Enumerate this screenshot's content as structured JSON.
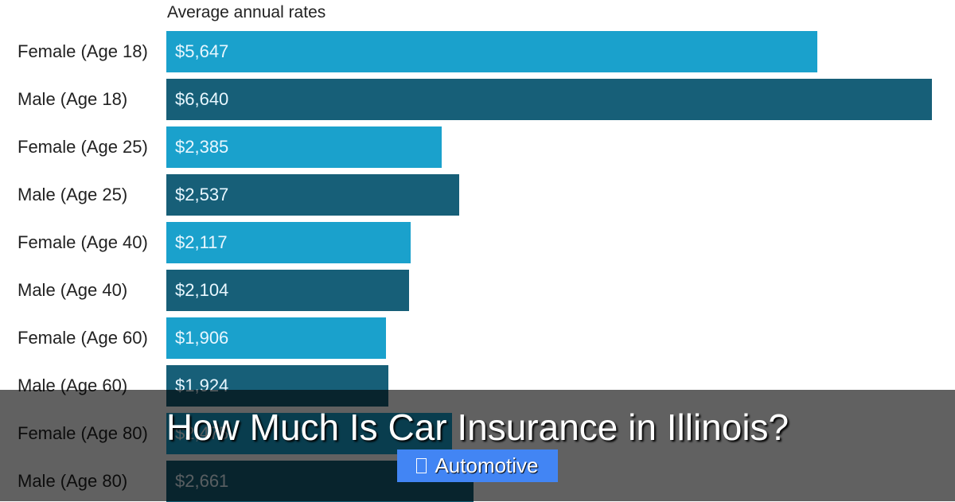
{
  "chart_data": {
    "type": "bar",
    "orientation": "horizontal",
    "title": "Average annual rates",
    "xlabel": "",
    "ylabel": "",
    "xlim": [
      0,
      6640
    ],
    "grid": false,
    "legend": null,
    "categories": [
      "Female (Age 18)",
      "Male (Age 18)",
      "Female (Age 25)",
      "Male (Age 25)",
      "Female (Age 40)",
      "Male (Age 40)",
      "Female (Age 60)",
      "Male (Age 60)",
      "Female (Age 80)",
      "Male (Age 80)"
    ],
    "values": [
      5647,
      6640,
      2385,
      2537,
      2117,
      2104,
      1906,
      1924,
      2475,
      2661
    ],
    "value_labels": [
      "$5,647",
      "$6,640",
      "$2,385",
      "$2,537",
      "$2,117",
      "$2,104",
      "$1,906",
      "$1,924",
      "$2,475",
      "$2,661"
    ],
    "colors": {
      "female": "#1aa1cc",
      "male": "#175f78"
    }
  },
  "overlay": {
    "headline": "How Much Is Car Insurance in Illinois?",
    "badge_label": "Automotive",
    "badge_color": "#4285f4"
  }
}
